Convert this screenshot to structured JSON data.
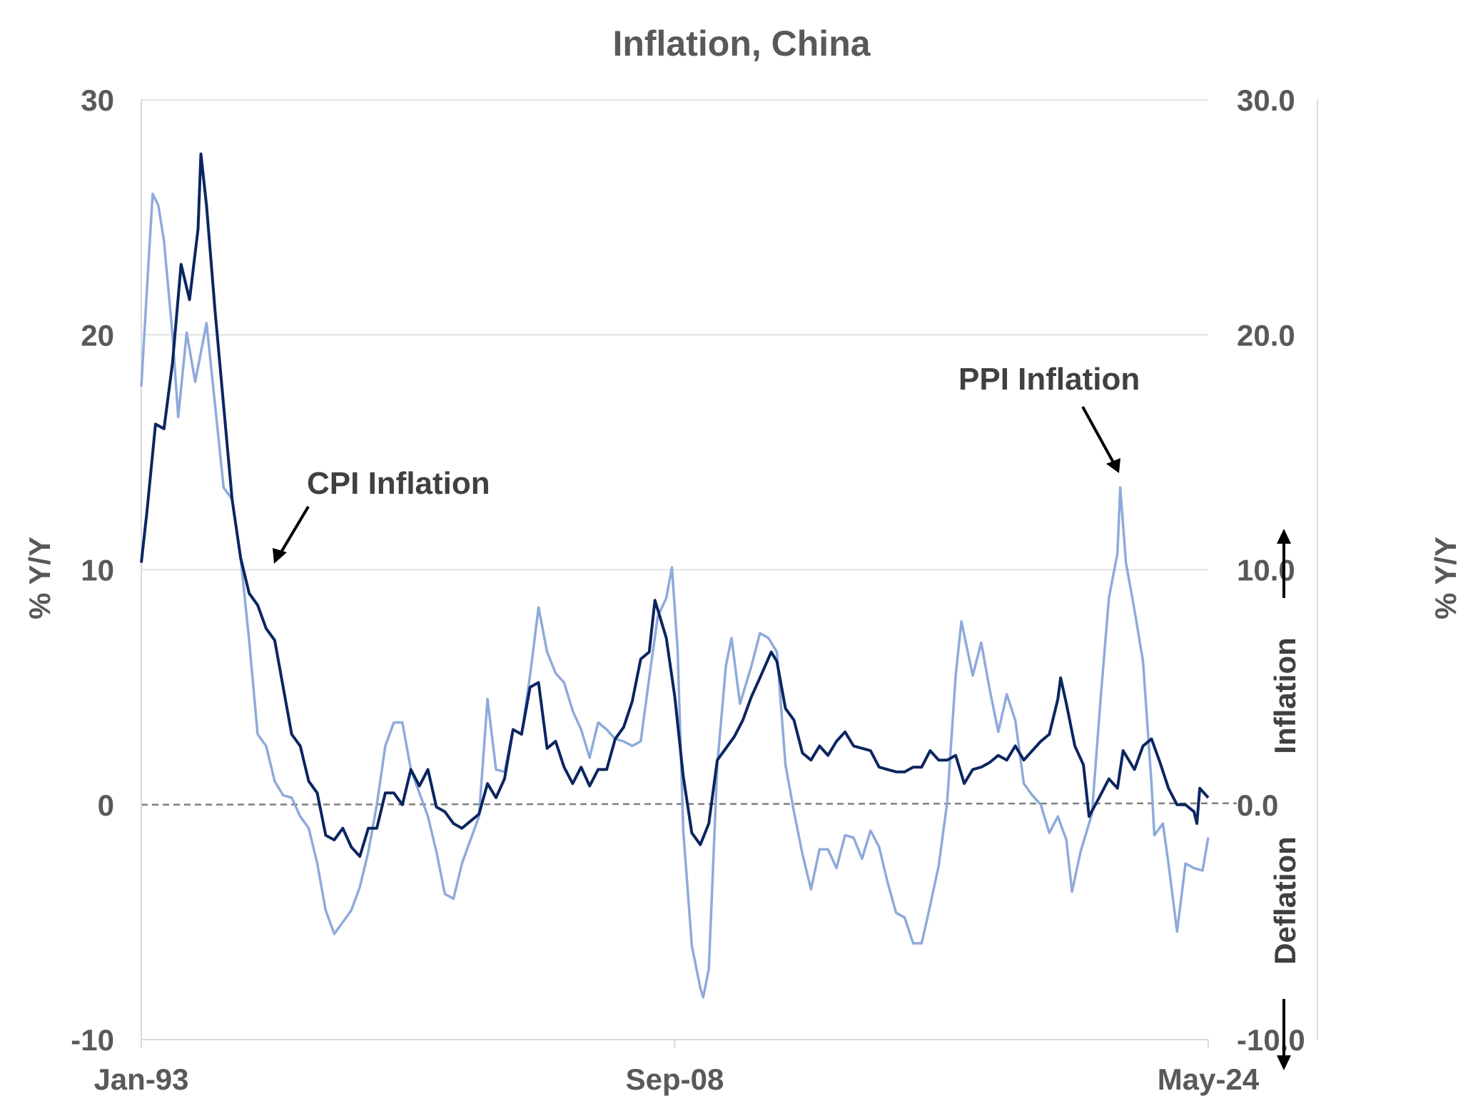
{
  "chart_data": {
    "type": "line",
    "title": "Inflation, China",
    "ylabel_left": "% Y/Y",
    "ylabel_right": "% Y/Y",
    "ylim": [
      -10,
      30
    ],
    "yticks_left": [
      "30",
      "20",
      "10",
      "0",
      "-10"
    ],
    "yticks_right": [
      "30.0",
      "20.0",
      "10.0",
      "0.0",
      "-10.0"
    ],
    "xticks": [
      "Jan-93",
      "Sep-08",
      "May-24"
    ],
    "x_range": [
      "1993-01",
      "2024-05"
    ],
    "zero_line": "dashed",
    "grid": true,
    "annotations": {
      "cpi": "CPI Inflation",
      "ppi": "PPI Inflation",
      "inflation": "Inflation",
      "deflation": "Deflation"
    },
    "series": [
      {
        "name": "CPI Inflation",
        "color": "#0b2560",
        "axis": "left",
        "points": [
          [
            "1993-01",
            10.3
          ],
          [
            "1993-03",
            12.5
          ],
          [
            "1993-06",
            16.2
          ],
          [
            "1993-09",
            16.0
          ],
          [
            "1993-12",
            18.8
          ],
          [
            "1994-03",
            23.0
          ],
          [
            "1994-06",
            21.5
          ],
          [
            "1994-09",
            24.5
          ],
          [
            "1994-10",
            27.7
          ],
          [
            "1994-12",
            25.5
          ],
          [
            "1995-03",
            21.0
          ],
          [
            "1995-06",
            17.0
          ],
          [
            "1995-09",
            13.0
          ],
          [
            "1995-12",
            10.5
          ],
          [
            "1996-03",
            9.0
          ],
          [
            "1996-06",
            8.5
          ],
          [
            "1996-09",
            7.5
          ],
          [
            "1996-12",
            7.0
          ],
          [
            "1997-03",
            5.0
          ],
          [
            "1997-06",
            3.0
          ],
          [
            "1997-09",
            2.5
          ],
          [
            "1997-12",
            1.0
          ],
          [
            "1998-03",
            0.5
          ],
          [
            "1998-06",
            -1.3
          ],
          [
            "1998-09",
            -1.5
          ],
          [
            "1998-12",
            -1.0
          ],
          [
            "1999-03",
            -1.8
          ],
          [
            "1999-06",
            -2.2
          ],
          [
            "1999-09",
            -1.0
          ],
          [
            "1999-12",
            -1.0
          ],
          [
            "2000-03",
            0.5
          ],
          [
            "2000-06",
            0.5
          ],
          [
            "2000-09",
            0.0
          ],
          [
            "2000-12",
            1.5
          ],
          [
            "2001-03",
            0.8
          ],
          [
            "2001-06",
            1.5
          ],
          [
            "2001-09",
            -0.1
          ],
          [
            "2001-12",
            -0.3
          ],
          [
            "2002-03",
            -0.8
          ],
          [
            "2002-06",
            -1.0
          ],
          [
            "2002-09",
            -0.7
          ],
          [
            "2002-12",
            -0.4
          ],
          [
            "2003-03",
            0.9
          ],
          [
            "2003-06",
            0.3
          ],
          [
            "2003-09",
            1.1
          ],
          [
            "2003-12",
            3.2
          ],
          [
            "2004-03",
            3.0
          ],
          [
            "2004-06",
            5.0
          ],
          [
            "2004-09",
            5.2
          ],
          [
            "2004-12",
            2.4
          ],
          [
            "2005-03",
            2.7
          ],
          [
            "2005-06",
            1.6
          ],
          [
            "2005-09",
            0.9
          ],
          [
            "2005-12",
            1.6
          ],
          [
            "2006-03",
            0.8
          ],
          [
            "2006-06",
            1.5
          ],
          [
            "2006-09",
            1.5
          ],
          [
            "2006-12",
            2.8
          ],
          [
            "2007-03",
            3.3
          ],
          [
            "2007-06",
            4.4
          ],
          [
            "2007-09",
            6.2
          ],
          [
            "2007-12",
            6.5
          ],
          [
            "2008-02",
            8.7
          ],
          [
            "2008-06",
            7.1
          ],
          [
            "2008-09",
            4.6
          ],
          [
            "2008-12",
            1.2
          ],
          [
            "2009-03",
            -1.2
          ],
          [
            "2009-06",
            -1.7
          ],
          [
            "2009-09",
            -0.8
          ],
          [
            "2009-12",
            1.9
          ],
          [
            "2010-03",
            2.4
          ],
          [
            "2010-06",
            2.9
          ],
          [
            "2010-09",
            3.6
          ],
          [
            "2010-12",
            4.6
          ],
          [
            "2011-03",
            5.4
          ],
          [
            "2011-07",
            6.5
          ],
          [
            "2011-09",
            6.1
          ],
          [
            "2011-12",
            4.1
          ],
          [
            "2012-03",
            3.6
          ],
          [
            "2012-06",
            2.2
          ],
          [
            "2012-09",
            1.9
          ],
          [
            "2012-12",
            2.5
          ],
          [
            "2013-03",
            2.1
          ],
          [
            "2013-06",
            2.7
          ],
          [
            "2013-09",
            3.1
          ],
          [
            "2013-12",
            2.5
          ],
          [
            "2014-03",
            2.4
          ],
          [
            "2014-06",
            2.3
          ],
          [
            "2014-09",
            1.6
          ],
          [
            "2014-12",
            1.5
          ],
          [
            "2015-03",
            1.4
          ],
          [
            "2015-06",
            1.4
          ],
          [
            "2015-09",
            1.6
          ],
          [
            "2015-12",
            1.6
          ],
          [
            "2016-03",
            2.3
          ],
          [
            "2016-06",
            1.9
          ],
          [
            "2016-09",
            1.9
          ],
          [
            "2016-12",
            2.1
          ],
          [
            "2017-03",
            0.9
          ],
          [
            "2017-06",
            1.5
          ],
          [
            "2017-09",
            1.6
          ],
          [
            "2017-12",
            1.8
          ],
          [
            "2018-03",
            2.1
          ],
          [
            "2018-06",
            1.9
          ],
          [
            "2018-09",
            2.5
          ],
          [
            "2018-12",
            1.9
          ],
          [
            "2019-03",
            2.3
          ],
          [
            "2019-06",
            2.7
          ],
          [
            "2019-09",
            3.0
          ],
          [
            "2019-12",
            4.5
          ],
          [
            "2020-01",
            5.4
          ],
          [
            "2020-03",
            4.3
          ],
          [
            "2020-06",
            2.5
          ],
          [
            "2020-09",
            1.7
          ],
          [
            "2020-11",
            -0.5
          ],
          [
            "2021-03",
            0.4
          ],
          [
            "2021-06",
            1.1
          ],
          [
            "2021-09",
            0.7
          ],
          [
            "2021-11",
            2.3
          ],
          [
            "2022-03",
            1.5
          ],
          [
            "2022-06",
            2.5
          ],
          [
            "2022-09",
            2.8
          ],
          [
            "2022-12",
            1.8
          ],
          [
            "2023-03",
            0.7
          ],
          [
            "2023-06",
            0.0
          ],
          [
            "2023-09",
            0.0
          ],
          [
            "2023-12",
            -0.3
          ],
          [
            "2024-01",
            -0.8
          ],
          [
            "2024-02",
            0.7
          ],
          [
            "2024-05",
            0.3
          ]
        ]
      },
      {
        "name": "PPI Inflation",
        "color": "#8eaadb",
        "axis": "right",
        "points": [
          [
            "1993-01",
            17.8
          ],
          [
            "1993-03",
            22.0
          ],
          [
            "1993-05",
            26.0
          ],
          [
            "1993-07",
            25.5
          ],
          [
            "1993-09",
            24.0
          ],
          [
            "1993-12",
            20.0
          ],
          [
            "1994-02",
            16.5
          ],
          [
            "1994-05",
            20.1
          ],
          [
            "1994-08",
            18.0
          ],
          [
            "1994-12",
            20.5
          ],
          [
            "1995-03",
            17.0
          ],
          [
            "1995-06",
            13.5
          ],
          [
            "1995-09",
            13.0
          ],
          [
            "1995-12",
            10.5
          ],
          [
            "1996-03",
            7.0
          ],
          [
            "1996-06",
            3.0
          ],
          [
            "1996-09",
            2.5
          ],
          [
            "1996-12",
            1.0
          ],
          [
            "1997-03",
            0.4
          ],
          [
            "1997-06",
            0.3
          ],
          [
            "1997-09",
            -0.5
          ],
          [
            "1997-12",
            -1.0
          ],
          [
            "1998-03",
            -2.5
          ],
          [
            "1998-06",
            -4.5
          ],
          [
            "1998-09",
            -5.5
          ],
          [
            "1998-12",
            -5.0
          ],
          [
            "1999-03",
            -4.5
          ],
          [
            "1999-06",
            -3.5
          ],
          [
            "1999-09",
            -2.0
          ],
          [
            "1999-12",
            0.0
          ],
          [
            "2000-03",
            2.5
          ],
          [
            "2000-06",
            3.5
          ],
          [
            "2000-09",
            3.5
          ],
          [
            "2000-12",
            1.5
          ],
          [
            "2001-03",
            0.5
          ],
          [
            "2001-06",
            -0.5
          ],
          [
            "2001-09",
            -2.0
          ],
          [
            "2001-12",
            -3.8
          ],
          [
            "2002-03",
            -4.0
          ],
          [
            "2002-06",
            -2.5
          ],
          [
            "2002-09",
            -1.5
          ],
          [
            "2002-12",
            -0.5
          ],
          [
            "2003-03",
            4.5
          ],
          [
            "2003-06",
            1.5
          ],
          [
            "2003-09",
            1.4
          ],
          [
            "2003-12",
            3.2
          ],
          [
            "2004-03",
            3.0
          ],
          [
            "2004-06",
            5.5
          ],
          [
            "2004-09",
            8.4
          ],
          [
            "2004-12",
            6.5
          ],
          [
            "2005-03",
            5.6
          ],
          [
            "2005-06",
            5.2
          ],
          [
            "2005-09",
            4.0
          ],
          [
            "2005-12",
            3.2
          ],
          [
            "2006-03",
            2.0
          ],
          [
            "2006-06",
            3.5
          ],
          [
            "2006-09",
            3.2
          ],
          [
            "2006-12",
            2.8
          ],
          [
            "2007-03",
            2.7
          ],
          [
            "2007-06",
            2.5
          ],
          [
            "2007-09",
            2.7
          ],
          [
            "2007-12",
            5.4
          ],
          [
            "2008-03",
            8.0
          ],
          [
            "2008-06",
            8.8
          ],
          [
            "2008-08",
            10.1
          ],
          [
            "2008-10",
            6.6
          ],
          [
            "2008-12",
            -1.1
          ],
          [
            "2009-03",
            -6.0
          ],
          [
            "2009-06",
            -7.8
          ],
          [
            "2009-07",
            -8.2
          ],
          [
            "2009-09",
            -7.0
          ],
          [
            "2009-12",
            1.7
          ],
          [
            "2010-03",
            5.9
          ],
          [
            "2010-05",
            7.1
          ],
          [
            "2010-08",
            4.3
          ],
          [
            "2010-12",
            5.9
          ],
          [
            "2011-03",
            7.3
          ],
          [
            "2011-06",
            7.1
          ],
          [
            "2011-09",
            6.5
          ],
          [
            "2011-12",
            1.7
          ],
          [
            "2012-03",
            -0.3
          ],
          [
            "2012-06",
            -2.1
          ],
          [
            "2012-09",
            -3.6
          ],
          [
            "2012-12",
            -1.9
          ],
          [
            "2013-03",
            -1.9
          ],
          [
            "2013-06",
            -2.7
          ],
          [
            "2013-09",
            -1.3
          ],
          [
            "2013-12",
            -1.4
          ],
          [
            "2014-03",
            -2.3
          ],
          [
            "2014-06",
            -1.1
          ],
          [
            "2014-09",
            -1.8
          ],
          [
            "2014-12",
            -3.3
          ],
          [
            "2015-03",
            -4.6
          ],
          [
            "2015-06",
            -4.8
          ],
          [
            "2015-09",
            -5.9
          ],
          [
            "2015-12",
            -5.9
          ],
          [
            "2016-03",
            -4.3
          ],
          [
            "2016-06",
            -2.6
          ],
          [
            "2016-09",
            0.1
          ],
          [
            "2016-12",
            5.5
          ],
          [
            "2017-02",
            7.8
          ],
          [
            "2017-06",
            5.5
          ],
          [
            "2017-09",
            6.9
          ],
          [
            "2017-12",
            4.9
          ],
          [
            "2018-03",
            3.1
          ],
          [
            "2018-06",
            4.7
          ],
          [
            "2018-09",
            3.6
          ],
          [
            "2018-12",
            0.9
          ],
          [
            "2019-03",
            0.4
          ],
          [
            "2019-06",
            0.0
          ],
          [
            "2019-09",
            -1.2
          ],
          [
            "2019-12",
            -0.5
          ],
          [
            "2020-03",
            -1.5
          ],
          [
            "2020-05",
            -3.7
          ],
          [
            "2020-08",
            -2.0
          ],
          [
            "2020-12",
            -0.4
          ],
          [
            "2021-03",
            4.4
          ],
          [
            "2021-06",
            8.8
          ],
          [
            "2021-09",
            10.7
          ],
          [
            "2021-10",
            13.5
          ],
          [
            "2021-12",
            10.3
          ],
          [
            "2022-03",
            8.3
          ],
          [
            "2022-06",
            6.1
          ],
          [
            "2022-09",
            0.9
          ],
          [
            "2022-10",
            -1.3
          ],
          [
            "2023-01",
            -0.8
          ],
          [
            "2023-03",
            -2.5
          ],
          [
            "2023-06",
            -5.4
          ],
          [
            "2023-09",
            -2.5
          ],
          [
            "2023-12",
            -2.7
          ],
          [
            "2024-03",
            -2.8
          ],
          [
            "2024-05",
            -1.4
          ]
        ]
      }
    ]
  }
}
